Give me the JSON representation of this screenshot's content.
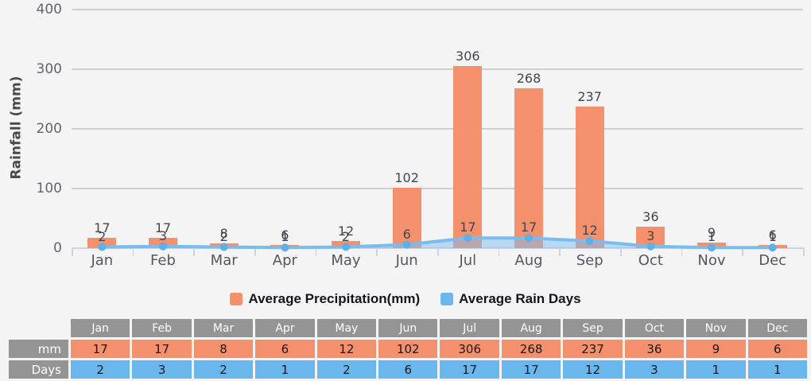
{
  "chart_data": {
    "type": "bar",
    "title": "",
    "categories": [
      "Jan",
      "Feb",
      "Mar",
      "Apr",
      "May",
      "Jun",
      "Jul",
      "Aug",
      "Sep",
      "Oct",
      "Nov",
      "Dec"
    ],
    "series": [
      {
        "name": "Average Precipitation(mm)",
        "type": "bar",
        "values": [
          17,
          17,
          8,
          6,
          12,
          102,
          306,
          268,
          237,
          36,
          9,
          6
        ]
      },
      {
        "name": "Average Rain Days",
        "type": "area-line",
        "values": [
          2,
          3,
          2,
          1,
          2,
          6,
          17,
          17,
          12,
          3,
          1,
          1
        ]
      }
    ],
    "xlabel": "",
    "ylabel": "Rainfall (mm)",
    "yticks": [
      0,
      100,
      200,
      300,
      400
    ],
    "ylim": [
      0,
      400
    ],
    "grid": true,
    "legend_position": "bottom",
    "data_labels": true
  },
  "legend": {
    "precipitation": "Average Precipitation(mm)",
    "rain_days": "Average Rain Days"
  },
  "table": {
    "row_labels": {
      "mm": "mm",
      "days": "Days"
    }
  },
  "colors": {
    "precipitation_bar": "#f4906c",
    "rain_line": "#7abcee",
    "rain_marker": "#5eb0e8",
    "rain_area": "rgba(125,187,242,0.5)",
    "table_header_gray": "#949494",
    "table_mm_orange": "#f4906c",
    "table_days_blue": "#69b7ec",
    "background": "#f4f4f5"
  }
}
